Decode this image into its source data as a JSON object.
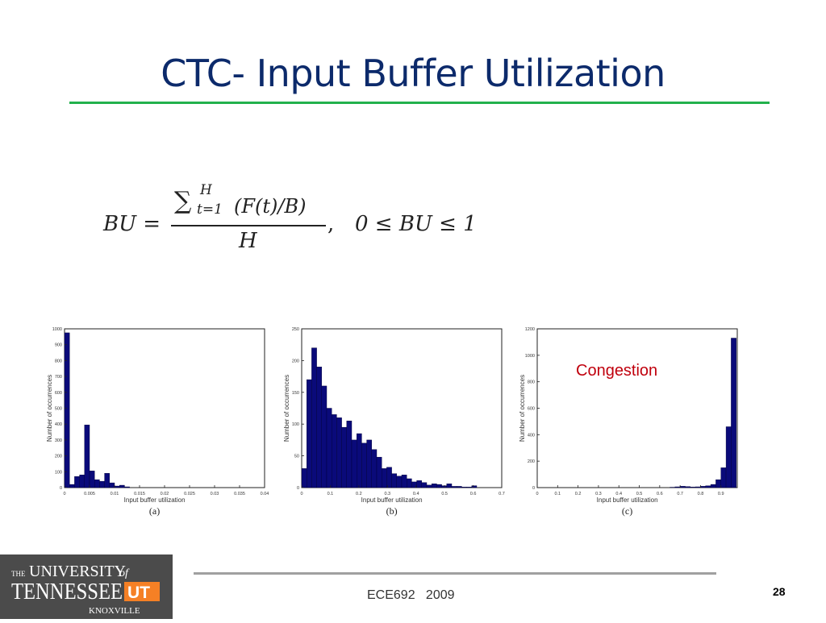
{
  "slide": {
    "title": "CTC- Input Buffer Utilization",
    "formula": {
      "lhs": "BU =",
      "sum": "∑",
      "sum_upper": "H",
      "sum_lower": "t=1",
      "numerator_expr": "(F(t)/B)",
      "denominator": "H",
      "comma": ",",
      "constraint": "0 ≤ BU ≤ 1"
    },
    "annotation": "Congestion",
    "footer": "ECE692   2009",
    "page_number": "28",
    "logo": {
      "the": "THE",
      "university": "UNIVERSITY",
      "of": "of",
      "tennessee": "TENNESSEE",
      "ut": "UT",
      "knoxville": "KNOXVILLE"
    },
    "colors": {
      "title": "#0c2a6b",
      "title_rule": "#22b14c",
      "bars": "#0a0a7a",
      "annotation": "#c0000d"
    }
  },
  "chart_data": [
    {
      "type": "bar",
      "caption": "(a)",
      "xlabel": "Input buffer utilization",
      "ylabel": "Number of occurrences",
      "xlim": [
        0,
        0.04
      ],
      "ylim": [
        0,
        1000
      ],
      "xticks": [
        "0",
        "0.005",
        "0.01",
        "0.015",
        "0.02",
        "0.025",
        "0.03",
        "0.035",
        "0.04"
      ],
      "yticks": [
        "0",
        "100",
        "200",
        "300",
        "400",
        "500",
        "600",
        "700",
        "800",
        "900",
        "1000"
      ],
      "bin_width": 0.001,
      "x": [
        0.0005,
        0.0015,
        0.0025,
        0.0035,
        0.0045,
        0.0055,
        0.0065,
        0.0075,
        0.0085,
        0.0095,
        0.0105,
        0.0115,
        0.0125
      ],
      "values": [
        975,
        20,
        70,
        80,
        395,
        105,
        50,
        40,
        90,
        30,
        10,
        15,
        5
      ]
    },
    {
      "type": "bar",
      "caption": "(b)",
      "xlabel": "Input buffer utilization",
      "ylabel": "Number of occurrences",
      "xlim": [
        0,
        0.7
      ],
      "ylim": [
        0,
        250
      ],
      "xticks": [
        "0",
        "0.1",
        "0.2",
        "0.3",
        "0.4",
        "0.5",
        "0.6",
        "0.7"
      ],
      "yticks": [
        "0",
        "50",
        "100",
        "150",
        "200",
        "250"
      ],
      "bin_width": 0.0175,
      "x": [
        0.00875,
        0.02625,
        0.04375,
        0.06125,
        0.07875,
        0.09625,
        0.11375,
        0.13125,
        0.14875,
        0.16625,
        0.18375,
        0.20125,
        0.21875,
        0.23625,
        0.25375,
        0.27125,
        0.28875,
        0.30625,
        0.32375,
        0.34125,
        0.35875,
        0.37625,
        0.39375,
        0.41125,
        0.42875,
        0.44625,
        0.46375,
        0.48125,
        0.49875,
        0.51625,
        0.53375,
        0.55125,
        0.56875,
        0.58625,
        0.60375,
        0.62125
      ],
      "values": [
        30,
        170,
        220,
        190,
        160,
        125,
        115,
        110,
        95,
        105,
        75,
        85,
        70,
        75,
        60,
        48,
        30,
        32,
        22,
        18,
        20,
        14,
        9,
        11,
        8,
        4,
        6,
        5,
        3,
        6,
        2,
        2,
        1,
        1,
        3,
        0
      ]
    },
    {
      "type": "bar",
      "caption": "(c)",
      "xlabel": "Input buffer utilization",
      "ylabel": "Number of occurrences",
      "xlim": [
        0,
        0.98
      ],
      "ylim": [
        0,
        1200
      ],
      "xticks": [
        "0",
        "0.1",
        "0.2",
        "0.3",
        "0.4",
        "0.5",
        "0.6",
        "0.7",
        "0.8",
        "0.9"
      ],
      "yticks": [
        "0",
        "200",
        "400",
        "600",
        "800",
        "1000",
        "1200"
      ],
      "bin_width": 0.025,
      "x": [
        0.6625,
        0.6875,
        0.7125,
        0.7375,
        0.7625,
        0.7875,
        0.8125,
        0.8375,
        0.8625,
        0.8875,
        0.9125,
        0.9375,
        0.9625
      ],
      "values": [
        3,
        6,
        10,
        8,
        5,
        6,
        10,
        14,
        24,
        60,
        150,
        460,
        1130
      ]
    }
  ]
}
